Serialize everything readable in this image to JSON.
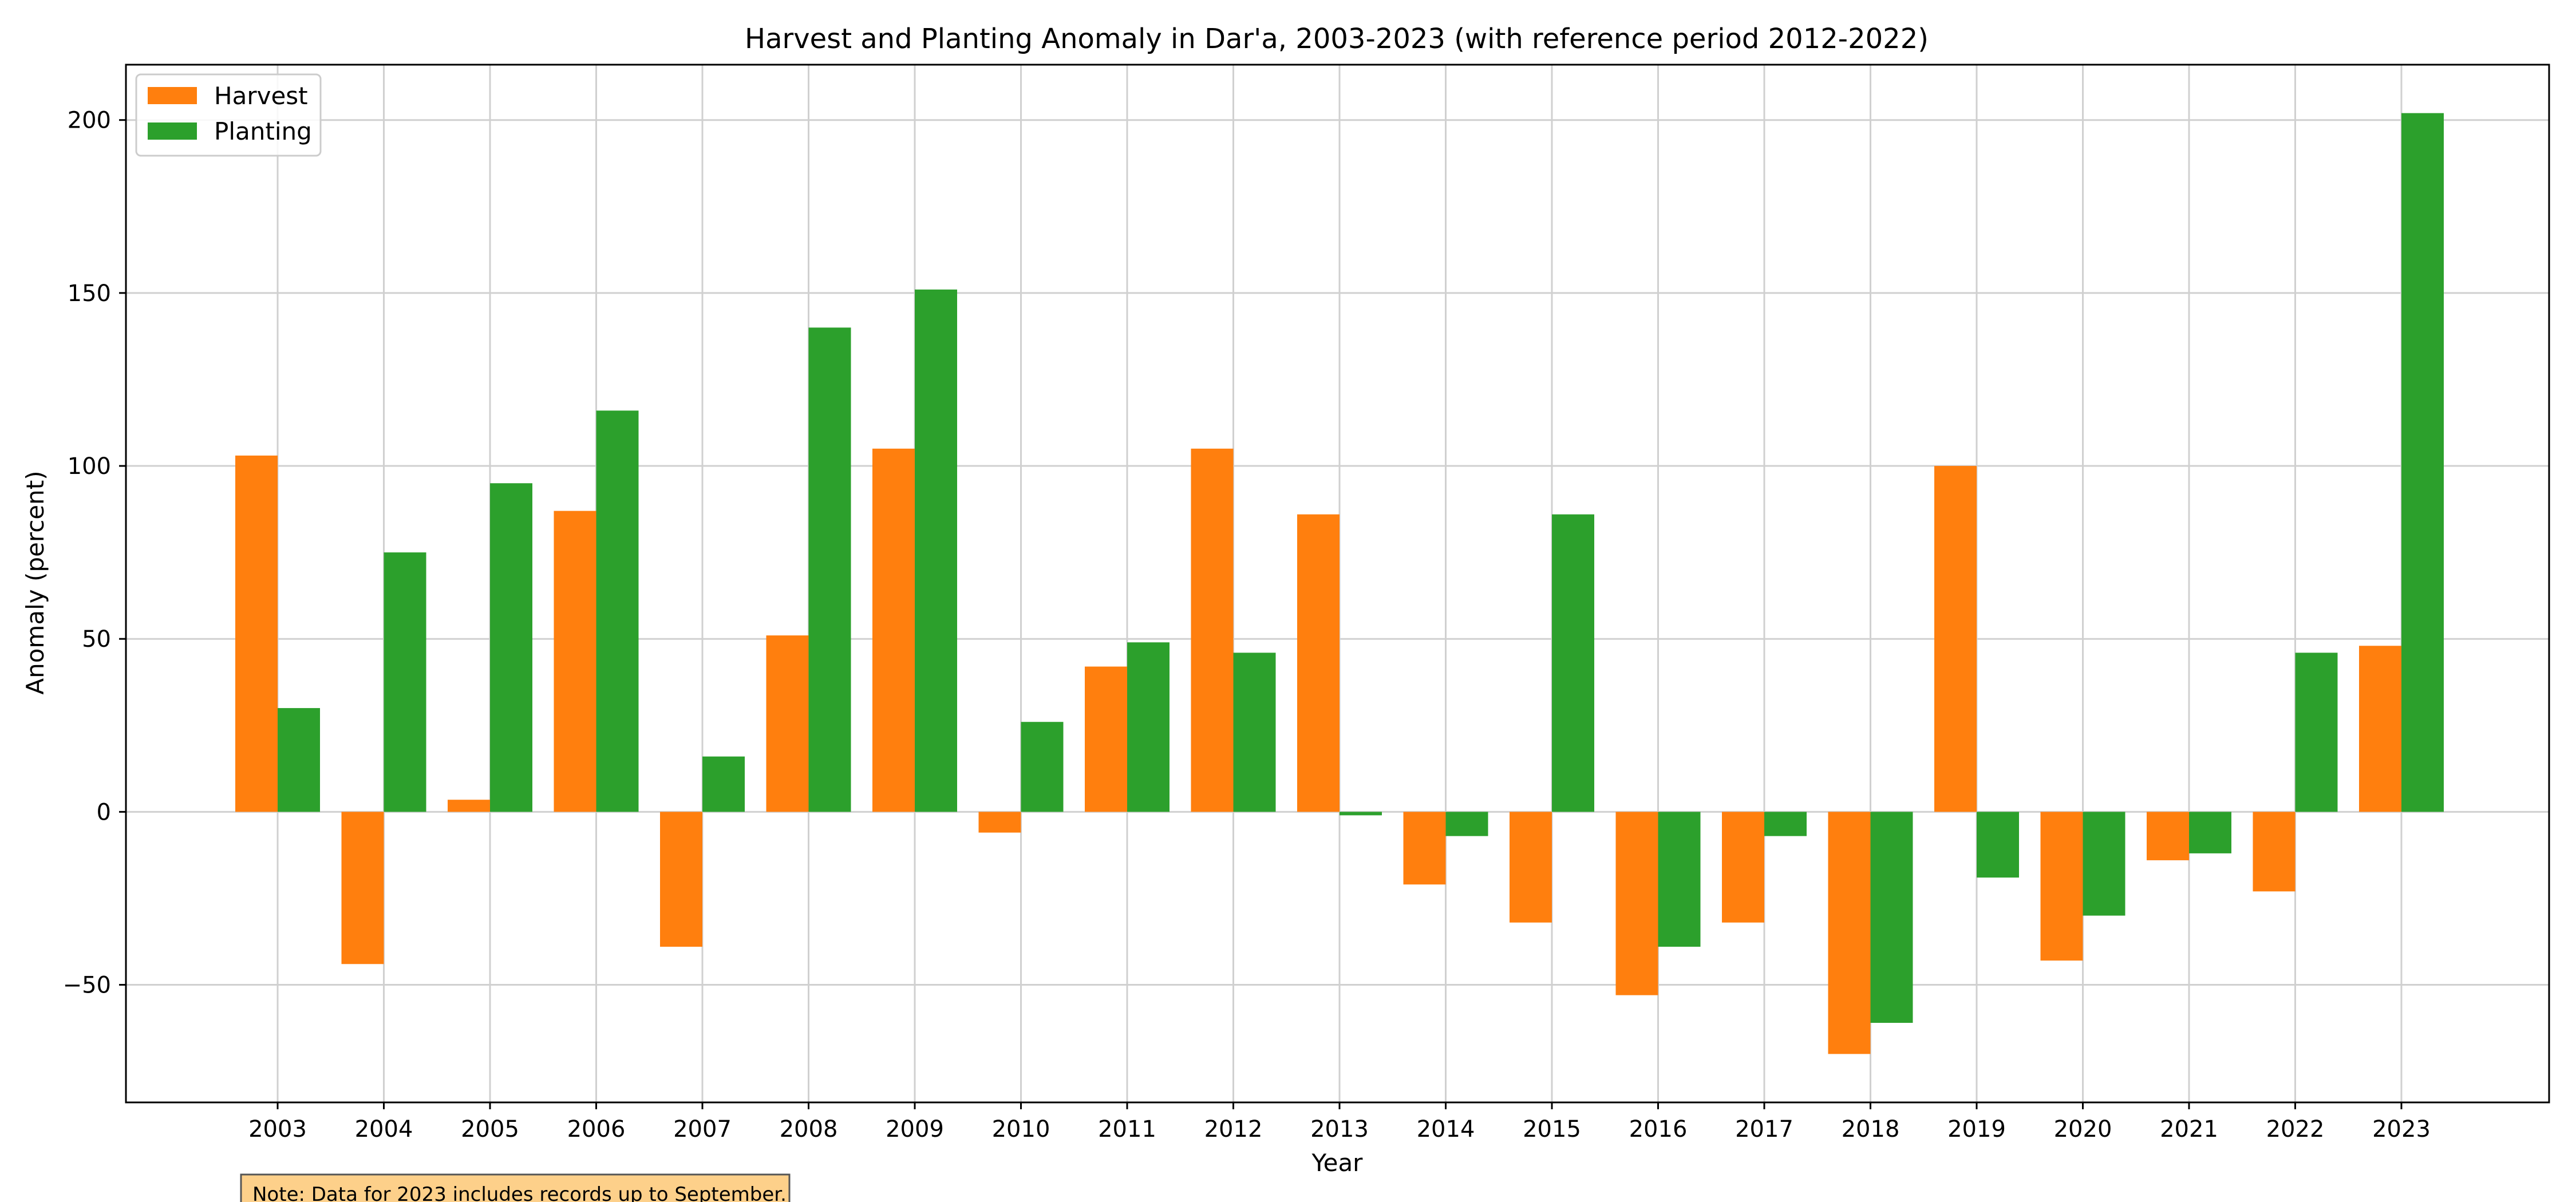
{
  "chart_data": {
    "type": "bar",
    "title": "Harvest and Planting Anomaly in Dar'a, 2003-2023 (with reference period 2012-2022)",
    "xlabel": "Year",
    "ylabel": "Anomaly (percent)",
    "categories": [
      "2003",
      "2004",
      "2005",
      "2006",
      "2007",
      "2008",
      "2009",
      "2010",
      "2011",
      "2012",
      "2013",
      "2014",
      "2015",
      "2016",
      "2017",
      "2018",
      "2019",
      "2020",
      "2021",
      "2022",
      "2023"
    ],
    "series": [
      {
        "name": "Harvest",
        "color": "#ff7f0e",
        "values": [
          103,
          -44,
          3.5,
          87,
          -39,
          51,
          105,
          -6,
          42,
          105,
          86,
          -21,
          -32,
          -53,
          -32,
          -70,
          100,
          -43,
          -14,
          -23,
          48
        ]
      },
      {
        "name": "Planting",
        "color": "#2ca02c",
        "values": [
          30,
          75,
          95,
          116,
          16,
          140,
          151,
          26,
          49,
          46,
          -1,
          -7,
          86,
          -39,
          -7,
          -61,
          -19,
          -30,
          -12,
          46,
          202
        ]
      }
    ],
    "ylim": [
      -84,
      216
    ],
    "yticks": [
      -50,
      0,
      50,
      100,
      150,
      200
    ],
    "ytick_labels": [
      "−50",
      "0",
      "50",
      "100",
      "150",
      "200"
    ],
    "grid": true,
    "legend_position": "top-left",
    "note": "Note: Data for 2023 includes records up to September.",
    "note_color": "#fdd08a"
  }
}
